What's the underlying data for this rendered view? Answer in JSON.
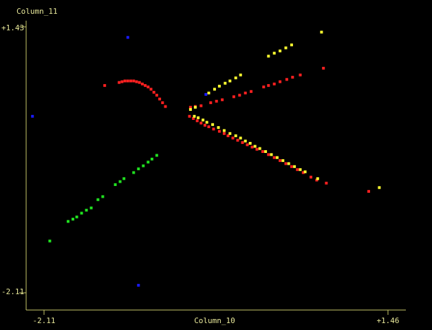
{
  "chart_data": {
    "type": "scatter",
    "xlabel": "Column_10",
    "ylabel": "Column_11",
    "xlim": [
      -2.11,
      1.46
    ],
    "ylim": [
      -2.11,
      1.43
    ],
    "x_ticks": [
      "-2.11",
      "+1.46"
    ],
    "y_ticks": [
      "+1.43",
      "-2.11"
    ],
    "axis_color": "#c8c86a",
    "background": "#000000",
    "series": [
      {
        "color": "#ff2020",
        "points": [
          [
            -1.48,
            0.65
          ],
          [
            -1.33,
            0.69
          ],
          [
            -1.3,
            0.7
          ],
          [
            -1.27,
            0.71
          ],
          [
            -1.24,
            0.71
          ],
          [
            -1.21,
            0.71
          ],
          [
            -1.18,
            0.71
          ],
          [
            -1.15,
            0.7
          ],
          [
            -1.12,
            0.69
          ],
          [
            -1.09,
            0.67
          ],
          [
            -1.06,
            0.65
          ],
          [
            -1.03,
            0.63
          ],
          [
            -1.0,
            0.6
          ],
          [
            -0.97,
            0.56
          ],
          [
            -0.94,
            0.52
          ],
          [
            -0.91,
            0.47
          ],
          [
            -0.88,
            0.42
          ],
          [
            -0.85,
            0.37
          ],
          [
            -0.6,
            0.24
          ],
          [
            -0.56,
            0.21
          ],
          [
            -0.52,
            0.18
          ],
          [
            -0.48,
            0.15
          ],
          [
            -0.44,
            0.12
          ],
          [
            -0.4,
            0.1
          ],
          [
            -0.35,
            0.07
          ],
          [
            -0.29,
            0.04
          ],
          [
            -0.24,
            0.01
          ],
          [
            -0.2,
            -0.02
          ],
          [
            -0.15,
            -0.05
          ],
          [
            -0.1,
            -0.08
          ],
          [
            -0.05,
            -0.11
          ],
          [
            0.0,
            -0.14
          ],
          [
            0.05,
            -0.17
          ],
          [
            0.1,
            -0.2
          ],
          [
            0.16,
            -0.23
          ],
          [
            0.22,
            -0.27
          ],
          [
            0.28,
            -0.31
          ],
          [
            0.34,
            -0.35
          ],
          [
            0.4,
            -0.39
          ],
          [
            0.46,
            -0.43
          ],
          [
            0.52,
            -0.47
          ],
          [
            0.58,
            -0.51
          ],
          [
            0.66,
            -0.57
          ],
          [
            0.72,
            -0.61
          ],
          [
            0.82,
            -0.65
          ],
          [
            1.26,
            -0.76
          ],
          [
            -0.59,
            0.36
          ],
          [
            -0.54,
            0.37
          ],
          [
            -0.48,
            0.38
          ],
          [
            -0.38,
            0.42
          ],
          [
            -0.32,
            0.44
          ],
          [
            -0.26,
            0.46
          ],
          [
            -0.14,
            0.5
          ],
          [
            -0.08,
            0.52
          ],
          [
            -0.02,
            0.55
          ],
          [
            0.04,
            0.57
          ],
          [
            0.17,
            0.63
          ],
          [
            0.22,
            0.65
          ],
          [
            0.28,
            0.67
          ],
          [
            0.34,
            0.7
          ],
          [
            0.41,
            0.73
          ],
          [
            0.47,
            0.76
          ],
          [
            0.55,
            0.79
          ],
          [
            0.79,
            0.88
          ]
        ]
      },
      {
        "color": "#ffff30",
        "points": [
          [
            -0.59,
            0.33
          ],
          [
            -0.54,
            0.36
          ],
          [
            -0.55,
            0.24
          ],
          [
            -0.51,
            0.22
          ],
          [
            -0.4,
            0.55
          ],
          [
            -0.34,
            0.6
          ],
          [
            -0.29,
            0.64
          ],
          [
            -0.23,
            0.68
          ],
          [
            -0.18,
            0.71
          ],
          [
            -0.12,
            0.75
          ],
          [
            -0.07,
            0.79
          ],
          [
            0.22,
            1.04
          ],
          [
            0.28,
            1.08
          ],
          [
            0.34,
            1.11
          ],
          [
            0.4,
            1.15
          ],
          [
            0.46,
            1.19
          ],
          [
            0.77,
            1.36
          ],
          [
            -0.46,
            0.19
          ],
          [
            -0.42,
            0.16
          ],
          [
            -0.36,
            0.13
          ],
          [
            -0.3,
            0.09
          ],
          [
            -0.24,
            0.05
          ],
          [
            -0.18,
            0.01
          ],
          [
            -0.12,
            -0.02
          ],
          [
            -0.07,
            -0.05
          ],
          [
            -0.02,
            -0.09
          ],
          [
            0.03,
            -0.12
          ],
          [
            0.08,
            -0.16
          ],
          [
            0.13,
            -0.19
          ],
          [
            0.19,
            -0.23
          ],
          [
            0.25,
            -0.27
          ],
          [
            0.31,
            -0.31
          ],
          [
            0.37,
            -0.35
          ],
          [
            0.43,
            -0.39
          ],
          [
            0.49,
            -0.43
          ],
          [
            0.55,
            -0.47
          ],
          [
            0.6,
            -0.5
          ],
          [
            0.73,
            -0.59
          ],
          [
            1.37,
            -0.71
          ]
        ]
      },
      {
        "color": "#20e020",
        "points": [
          [
            -2.05,
            -1.42
          ],
          [
            -1.86,
            -1.16
          ],
          [
            -1.81,
            -1.13
          ],
          [
            -1.77,
            -1.1
          ],
          [
            -1.72,
            -1.05
          ],
          [
            -1.67,
            -1.01
          ],
          [
            -1.62,
            -0.98
          ],
          [
            -1.55,
            -0.87
          ],
          [
            -1.5,
            -0.83
          ],
          [
            -1.37,
            -0.67
          ],
          [
            -1.32,
            -0.63
          ],
          [
            -1.28,
            -0.59
          ],
          [
            -1.18,
            -0.51
          ],
          [
            -1.13,
            -0.46
          ],
          [
            -1.08,
            -0.42
          ],
          [
            -1.03,
            -0.37
          ],
          [
            -0.99,
            -0.33
          ],
          [
            -0.94,
            -0.28
          ]
        ]
      },
      {
        "color": "#1a1aff",
        "points": [
          [
            -1.24,
            1.29
          ],
          [
            -2.23,
            0.24
          ],
          [
            -0.43,
            0.53
          ],
          [
            -1.13,
            -2.01
          ]
        ]
      }
    ]
  }
}
